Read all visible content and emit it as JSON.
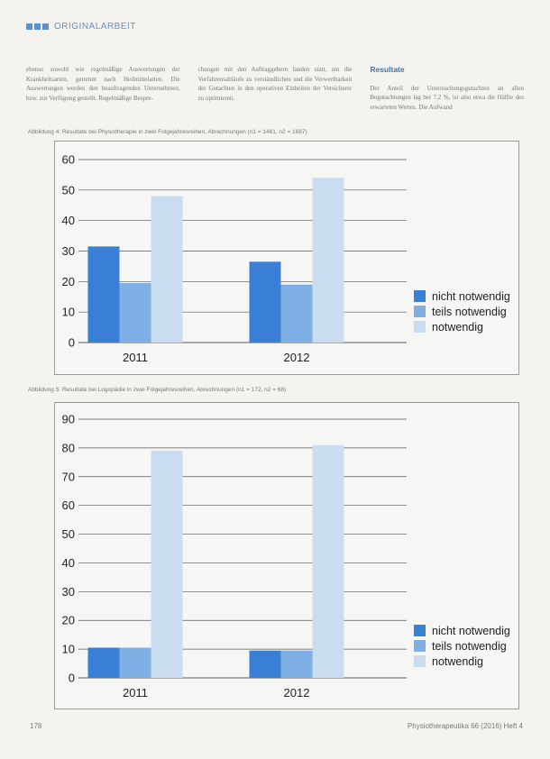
{
  "header": {
    "section_label": "ORIGINALARBEIT"
  },
  "intro_text": {
    "col1": "ebenso sowohl wie regelmäßige Auswertungen der Krankheitsarten, getrennt nach Heilmittelarten. Die Auswertungen werden den beauftragenden Unternehmen, bzw. zur Verfügung gestellt. Regelmäßige Bespre-",
    "col2": "chungen mit den Auftraggebern fanden statt, um die Verfahrensabläufe zu verständlichen und die Verwertbarkeit der Gutachten in den operativen Einheiten der Versicherer zu optimieren.",
    "col3_heading": "Resultate",
    "col3": "Der Anteil der Untersuchungsgutachten an allen Begutachtungen lag bei 7,2 %, ist also etwa die Hälfte des erwarteten Wertes. Die Aufwand"
  },
  "figures": [
    {
      "caption": "Abbildung 4: Resultate bei Physiotherapie in zwei Folgejahresreihen, Abrechnungen (n1 = 1461, n2 = 1687)"
    },
    {
      "caption": "Abbildung 5: Resultate bei Logopädie in zwei Folgejahresreihen, Abrechnungen (n1 = 172, n2 = 68)"
    }
  ],
  "colors": {
    "nicht_notwendig": "#3a7fd6",
    "teils_notwendig": "#7eb0e6",
    "notwendig": "#cadcf0",
    "gridline": "#555555",
    "axis_text": "#222222"
  },
  "chart_data": [
    {
      "type": "bar",
      "categories": [
        "2011",
        "2012"
      ],
      "series": [
        {
          "name": "nicht notwendig",
          "values": [
            31.5,
            26.5
          ]
        },
        {
          "name": "teils notwendig",
          "values": [
            19.5,
            19
          ]
        },
        {
          "name": "notwendig",
          "values": [
            48,
            54
          ]
        }
      ],
      "title": "",
      "xlabel": "",
      "ylabel": "",
      "ylim": [
        0,
        60
      ],
      "yticks": [
        0,
        10,
        20,
        30,
        40,
        50,
        60
      ],
      "grid": true,
      "legend": "bottom-right"
    },
    {
      "type": "bar",
      "categories": [
        "2011",
        "2012"
      ],
      "series": [
        {
          "name": "nicht notwendig",
          "values": [
            10.5,
            9.5
          ]
        },
        {
          "name": "teils notwendig",
          "values": [
            10.5,
            9.5
          ]
        },
        {
          "name": "notwendig",
          "values": [
            79,
            81
          ]
        }
      ],
      "title": "",
      "xlabel": "",
      "ylabel": "",
      "ylim": [
        0,
        90
      ],
      "yticks": [
        0,
        10,
        20,
        30,
        40,
        50,
        60,
        70,
        80,
        90
      ],
      "grid": true,
      "legend": "bottom-right"
    }
  ],
  "footer": {
    "page_number": "178",
    "journal": "Physiotherapeutika 66 (2016) Heft 4"
  }
}
